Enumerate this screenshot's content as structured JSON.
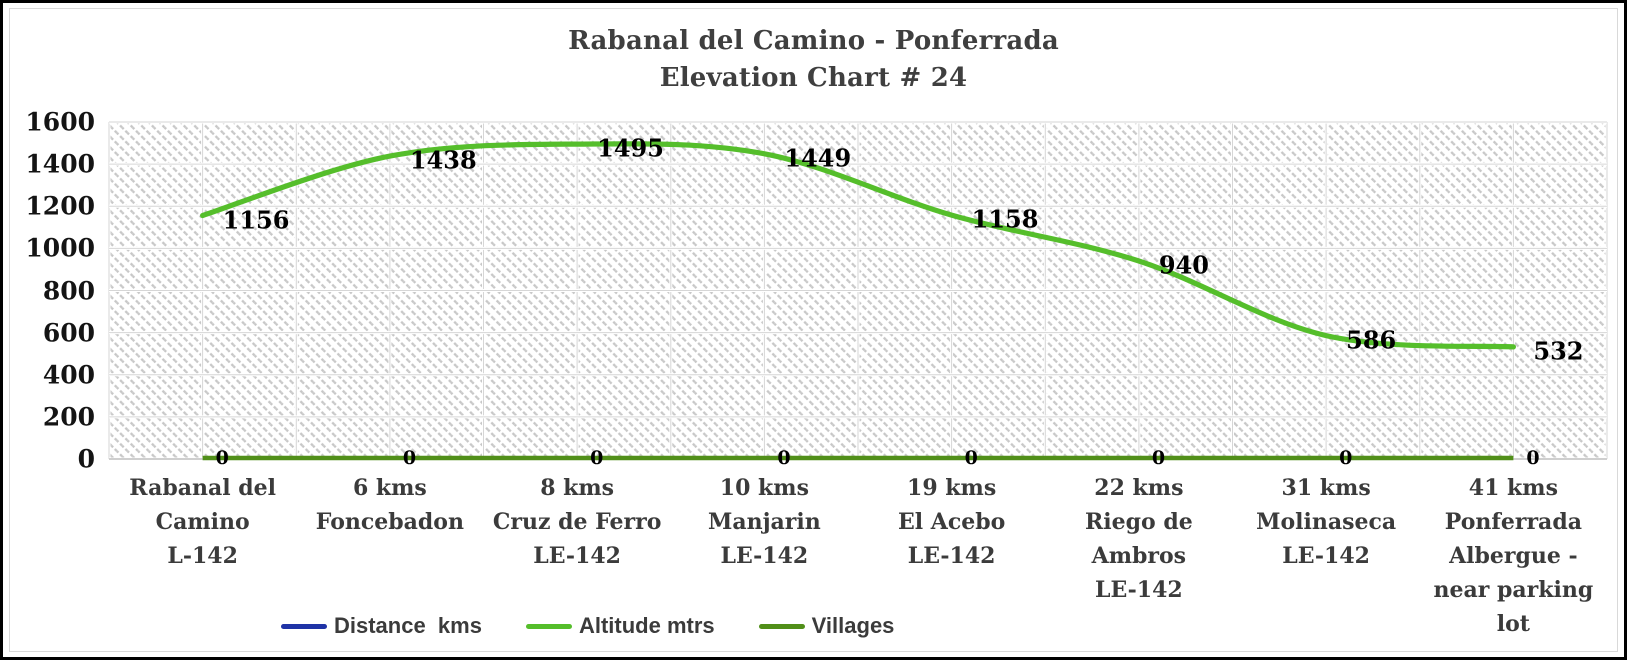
{
  "frame": {
    "border_color": "#000000",
    "inner_frame_color": "#d9d9d9",
    "background": "#ffffff"
  },
  "chart_data": {
    "type": "line",
    "title_line1": "Rabanal del Camino - Ponferrada",
    "title_line2": "Elevation Chart # 24",
    "title_color": "#3f3f3f",
    "categories": [
      "Rabanal del\nCamino\nL-142",
      "6 kms\nFoncebadon",
      "8 kms\nCruz de Ferro\nLE-142",
      "10 kms\nManjarin\nLE-142",
      "19 kms\nEl Acebo\nLE-142",
      "22 kms\nRiego de\nAmbros\nLE-142",
      "31 kms\nMolinaseca\nLE-142",
      "41 kms\nPonferrada\nAlbergue -\nnear parking\nlot"
    ],
    "series": [
      {
        "name": "Distance  kms",
        "color": "#1F33A6",
        "values": []
      },
      {
        "name": "Altitude mtrs",
        "color": "#55BE2B",
        "values": [
          1156,
          1438,
          1495,
          1449,
          1158,
          940,
          586,
          532
        ],
        "point_labels": [
          "1156",
          "1438",
          "1495",
          "1449",
          "1158",
          "940",
          "586",
          "532"
        ]
      },
      {
        "name": "Villages",
        "color": "#518F19",
        "values": [
          0,
          0,
          0,
          0,
          0,
          0,
          0,
          0
        ],
        "point_labels": [
          "0",
          "0",
          "0",
          "0",
          "0",
          "0",
          "0",
          "0"
        ]
      }
    ],
    "ylim": [
      0,
      1600
    ],
    "ytick_step": 200,
    "grid": "on",
    "legend_position": "bottom-left",
    "plot_background": "diagonal-hatch",
    "gridline_color": "#d6d6d6",
    "axis_line_color": "#bfbfbf",
    "hatch_color": "#c7c7c7"
  }
}
